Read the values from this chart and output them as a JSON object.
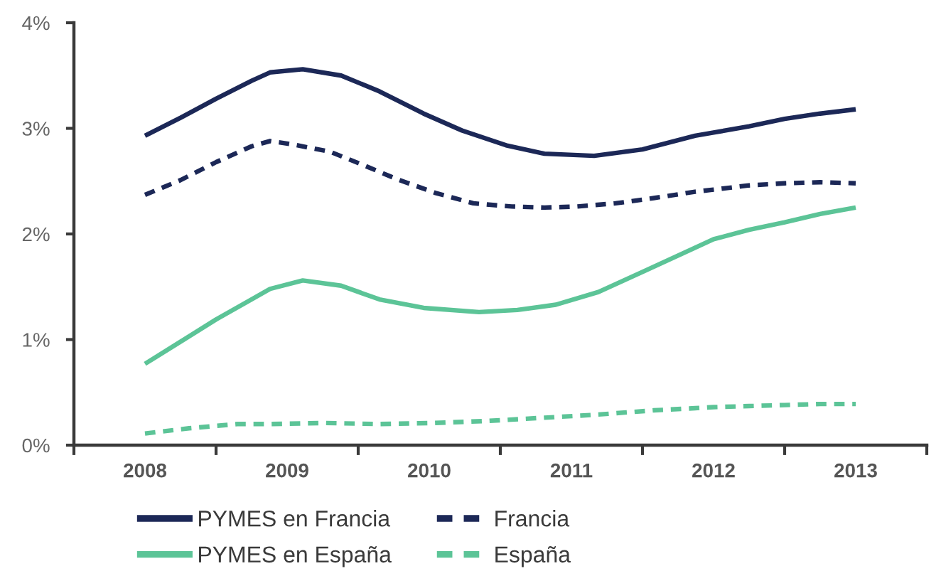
{
  "chart_data": {
    "type": "line",
    "series": [
      {
        "name": "PYMES en Francia",
        "color": "#1c2857",
        "line_style": "solid",
        "x": [
          2008.0,
          2008.25,
          2008.5,
          2008.75,
          2008.88,
          2009.11,
          2009.38,
          2009.65,
          2009.96,
          2010.23,
          2010.54,
          2010.81,
          2011.16,
          2011.5,
          2011.87,
          2012.0,
          2012.25,
          2012.5,
          2012.75,
          2013.0
        ],
        "values": [
          2.93,
          3.1,
          3.28,
          3.45,
          3.53,
          3.56,
          3.5,
          3.35,
          3.14,
          2.98,
          2.84,
          2.76,
          2.74,
          2.8,
          2.93,
          2.96,
          3.02,
          3.09,
          3.14,
          3.18
        ]
      },
      {
        "name": "Francia",
        "color": "#1c2857",
        "line_style": "dashed",
        "x": [
          2008.0,
          2008.25,
          2008.5,
          2008.75,
          2008.88,
          2009.03,
          2009.3,
          2009.54,
          2009.77,
          2010.04,
          2010.31,
          2010.58,
          2010.81,
          2011.04,
          2011.31,
          2011.58,
          2011.87,
          2012.0,
          2012.25,
          2012.5,
          2012.75,
          2013.0
        ],
        "values": [
          2.37,
          2.51,
          2.68,
          2.83,
          2.88,
          2.85,
          2.78,
          2.65,
          2.52,
          2.39,
          2.29,
          2.26,
          2.25,
          2.26,
          2.29,
          2.34,
          2.4,
          2.42,
          2.46,
          2.48,
          2.49,
          2.48
        ]
      },
      {
        "name": "PYMES en España",
        "color": "#5cc497",
        "line_style": "solid",
        "x": [
          2008.0,
          2008.25,
          2008.5,
          2008.75,
          2008.88,
          2009.11,
          2009.38,
          2009.65,
          2009.96,
          2010.35,
          2010.62,
          2010.89,
          2011.19,
          2011.5,
          2011.87,
          2012.0,
          2012.25,
          2012.5,
          2012.75,
          2013.0
        ],
        "values": [
          0.77,
          0.98,
          1.19,
          1.38,
          1.48,
          1.56,
          1.51,
          1.38,
          1.3,
          1.26,
          1.28,
          1.33,
          1.45,
          1.64,
          1.87,
          1.95,
          2.04,
          2.11,
          2.19,
          2.25
        ]
      },
      {
        "name": "España",
        "color": "#5cc497",
        "line_style": "dashed",
        "x": [
          2008.0,
          2008.31,
          2008.65,
          2008.88,
          2009.27,
          2009.65,
          2010.04,
          2010.42,
          2010.81,
          2011.19,
          2011.58,
          2011.87,
          2012.0,
          2012.25,
          2012.5,
          2012.75,
          2013.0
        ],
        "values": [
          0.11,
          0.16,
          0.2,
          0.2,
          0.21,
          0.2,
          0.21,
          0.23,
          0.26,
          0.29,
          0.33,
          0.35,
          0.36,
          0.37,
          0.38,
          0.39,
          0.39
        ]
      }
    ],
    "xlim": [
      2007.5,
      2013.5
    ],
    "xticks": [
      {
        "value": 2007.5,
        "label": null
      },
      2008,
      {
        "value": 2008.5,
        "label": null
      },
      2009,
      {
        "value": 2009.5,
        "label": null
      },
      2010,
      {
        "value": 2010.5,
        "label": null
      },
      2011,
      {
        "value": 2011.5,
        "label": null
      },
      2012,
      {
        "value": 2012.5,
        "label": null
      },
      2013,
      {
        "value": 2013.5,
        "label": null
      }
    ],
    "ylim": [
      0,
      4
    ],
    "yticks": [
      {
        "value": 0,
        "label": "0%"
      },
      {
        "value": 1,
        "label": "1%"
      },
      {
        "value": 2,
        "label": "2%"
      },
      {
        "value": 3,
        "label": "3%"
      },
      {
        "value": 4,
        "label": "4%"
      }
    ],
    "legend": "bottom left"
  }
}
